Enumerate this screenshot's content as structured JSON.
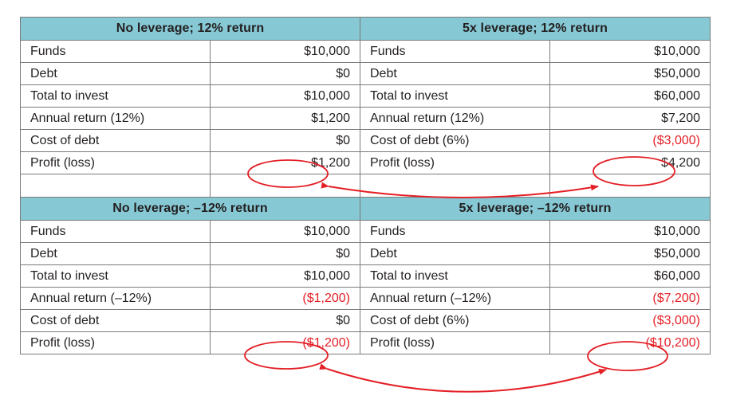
{
  "colors": {
    "header_bg": "#86c8d4",
    "negative": "#e41f26",
    "annotation": "#e41f26",
    "border": "#7a7a7a"
  },
  "top": {
    "left": {
      "title": "No leverage; 12% return",
      "rows": [
        {
          "label": "Funds",
          "value": "$10,000",
          "negative": false
        },
        {
          "label": "Debt",
          "value": "$0",
          "negative": false
        },
        {
          "label": "Total to invest",
          "value": "$10,000",
          "negative": false
        },
        {
          "label": "Annual return (12%)",
          "value": "$1,200",
          "negative": false
        },
        {
          "label": "Cost of debt",
          "value": "$0",
          "negative": false
        },
        {
          "label": "Profit (loss)",
          "value": "$1,200",
          "negative": false
        }
      ]
    },
    "right": {
      "title": "5x leverage; 12% return",
      "rows": [
        {
          "label": "Funds",
          "value": "$10,000",
          "negative": false
        },
        {
          "label": "Debt",
          "value": "$50,000",
          "negative": false
        },
        {
          "label": "Total to invest",
          "value": "$60,000",
          "negative": false
        },
        {
          "label": "Annual return (12%)",
          "value": "$7,200",
          "negative": false
        },
        {
          "label": "Cost of debt (6%)",
          "value": "($3,000)",
          "negative": true
        },
        {
          "label": "Profit (loss)",
          "value": "$4,200",
          "negative": false
        }
      ]
    }
  },
  "bottom": {
    "left": {
      "title": "No leverage; –12% return",
      "rows": [
        {
          "label": "Funds",
          "value": "$10,000",
          "negative": false
        },
        {
          "label": "Debt",
          "value": "$0",
          "negative": false
        },
        {
          "label": "Total to invest",
          "value": "$10,000",
          "negative": false
        },
        {
          "label": "Annual return (–12%)",
          "value": "($1,200)",
          "negative": true
        },
        {
          "label": "Cost of debt",
          "value": "$0",
          "negative": false
        },
        {
          "label": "Profit (loss)",
          "value": "($1,200)",
          "negative": true
        }
      ]
    },
    "right": {
      "title": "5x leverage; –12% return",
      "rows": [
        {
          "label": "Funds",
          "value": "$10,000",
          "negative": false
        },
        {
          "label": "Debt",
          "value": "$50,000",
          "negative": false
        },
        {
          "label": "Total to invest",
          "value": "$60,000",
          "negative": false
        },
        {
          "label": "Annual return (–12%)",
          "value": "($7,200)",
          "negative": true
        },
        {
          "label": "Cost of debt (6%)",
          "value": "($3,000)",
          "negative": true
        },
        {
          "label": "Profit (loss)",
          "value": "($10,200)",
          "negative": true
        }
      ]
    }
  }
}
